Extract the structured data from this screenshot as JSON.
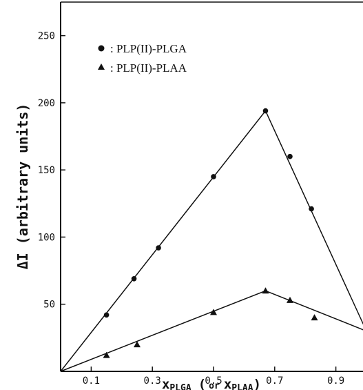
{
  "chart_data": {
    "type": "scatter",
    "title": "",
    "xlabel": {
      "main": "x",
      "sub": "PLGA",
      "paren_open": "(",
      "or": "or",
      "main2": "x",
      "sub2": "PLAA",
      "paren_close": ")"
    },
    "ylabel": "ΔI (arbitrary units)",
    "xlim": [
      0.0,
      1.0
    ],
    "ylim": [
      0,
      275
    ],
    "x_ticks": [
      0.1,
      0.3,
      0.5,
      0.7,
      0.9
    ],
    "x_tick_labels": [
      "0.1",
      "0.3",
      "0.5",
      "0.7",
      "0.9"
    ],
    "y_ticks": [
      50,
      100,
      150,
      200,
      250
    ],
    "y_tick_labels": [
      "50",
      "100",
      "150",
      "200",
      "250"
    ],
    "grid": false,
    "legend_position": "top-left",
    "series": [
      {
        "name": ": PLP(II)-PLGA",
        "marker": "circle",
        "x": [
          0.15,
          0.24,
          0.32,
          0.5,
          0.67,
          0.75,
          0.82
        ],
        "y": [
          42,
          69,
          92,
          145,
          194,
          160,
          121
        ],
        "fit_line": {
          "x": [
            0.0,
            0.67,
            1.0
          ],
          "y": [
            0,
            194,
            30
          ]
        }
      },
      {
        "name": ": PLP(II)-PLAA",
        "marker": "triangle",
        "x": [
          0.15,
          0.25,
          0.5,
          0.67,
          0.75,
          0.83
        ],
        "y": [
          12,
          20,
          44,
          60,
          53,
          40
        ],
        "fit_line": {
          "x": [
            0.0,
            0.67,
            1.0
          ],
          "y": [
            0,
            60,
            30
          ]
        }
      }
    ]
  }
}
